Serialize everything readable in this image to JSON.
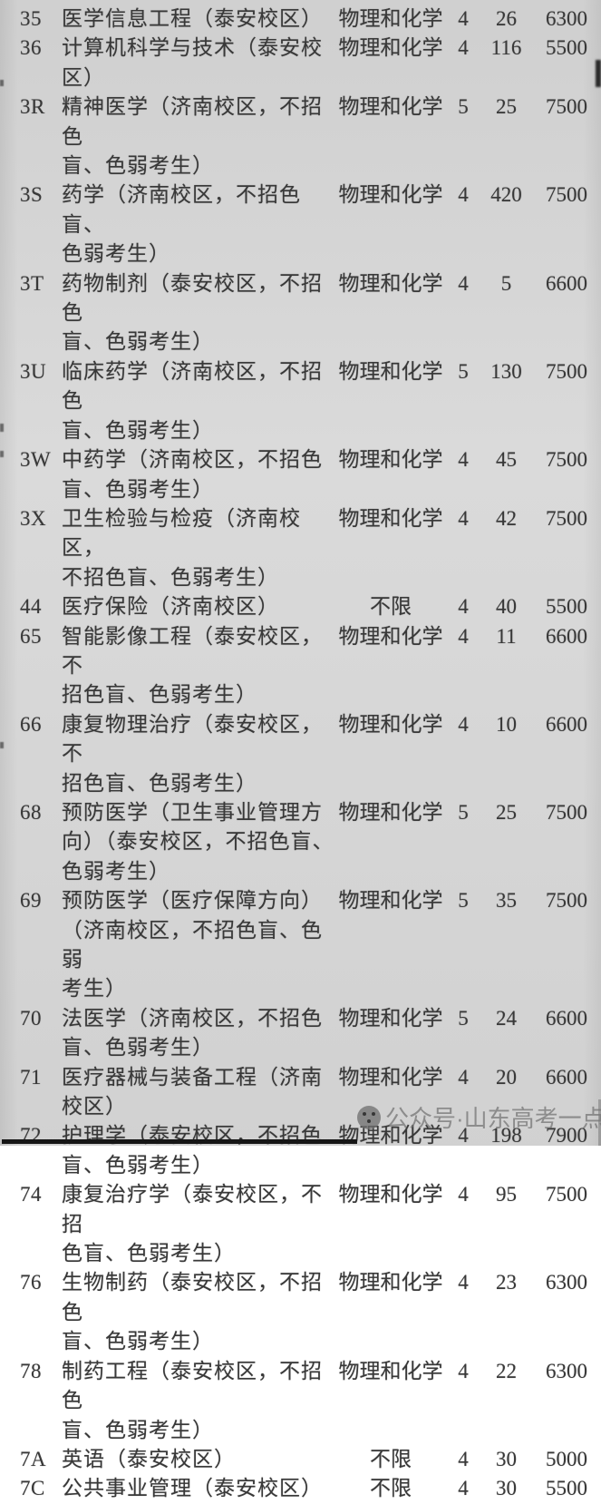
{
  "page": {
    "background_color": "#d8d8d8",
    "text_color": "#383838"
  },
  "table": {
    "rows": [
      {
        "code": "35",
        "major": "医学信息工程（泰安校区）",
        "subject": "物理和化学",
        "years": "4",
        "count": "26",
        "tuition": "6300"
      },
      {
        "code": "36",
        "major": "计算机科学与技术（泰安校区）",
        "subject": "物理和化学",
        "years": "4",
        "count": "116",
        "tuition": "5500"
      },
      {
        "code": "3R",
        "major": "精神医学（济南校区，不招色\n盲、色弱考生）",
        "subject": "物理和化学",
        "years": "5",
        "count": "25",
        "tuition": "7500"
      },
      {
        "code": "3S",
        "major": "药学（济南校区，不招色盲、\n色弱考生）",
        "subject": "物理和化学",
        "years": "4",
        "count": "420",
        "tuition": "7500"
      },
      {
        "code": "3T",
        "major": "药物制剂（泰安校区，不招色\n盲、色弱考生）",
        "subject": "物理和化学",
        "years": "4",
        "count": "5",
        "tuition": "6600"
      },
      {
        "code": "3U",
        "major": "临床药学（济南校区，不招色\n盲、色弱考生）",
        "subject": "物理和化学",
        "years": "5",
        "count": "130",
        "tuition": "7500"
      },
      {
        "code": "3W",
        "major": "中药学（济南校区，不招色\n盲、色弱考生）",
        "subject": "物理和化学",
        "years": "4",
        "count": "45",
        "tuition": "7500"
      },
      {
        "code": "3X",
        "major": "卫生检验与检疫（济南校区，\n不招色盲、色弱考生）",
        "subject": "物理和化学",
        "years": "4",
        "count": "42",
        "tuition": "7500"
      },
      {
        "code": "44",
        "major": "医疗保险（济南校区）",
        "subject": "不限",
        "years": "4",
        "count": "40",
        "tuition": "5500"
      },
      {
        "code": "65",
        "major": "智能影像工程（泰安校区，不\n招色盲、色弱考生）",
        "subject": "物理和化学",
        "years": "4",
        "count": "11",
        "tuition": "6600"
      },
      {
        "code": "66",
        "major": "康复物理治疗（泰安校区，不\n招色盲、色弱考生）",
        "subject": "物理和化学",
        "years": "4",
        "count": "10",
        "tuition": "6600"
      },
      {
        "code": "68",
        "major": "预防医学（卫生事业管理方\n向）（泰安校区，不招色盲、\n色弱考生）",
        "subject": "物理和化学",
        "years": "5",
        "count": "25",
        "tuition": "7500"
      },
      {
        "code": "69",
        "major": "预防医学（医疗保障方向）\n（济南校区，不招色盲、色弱\n考生）",
        "subject": "物理和化学",
        "years": "5",
        "count": "35",
        "tuition": "7500"
      },
      {
        "code": "70",
        "major": "法医学（济南校区，不招色\n盲、色弱考生）",
        "subject": "物理和化学",
        "years": "5",
        "count": "24",
        "tuition": "6600"
      },
      {
        "code": "71",
        "major": "医疗器械与装备工程（济南\n校区）",
        "subject": "物理和化学",
        "years": "4",
        "count": "20",
        "tuition": "6600"
      },
      {
        "code": "72",
        "major": "护理学（泰安校区，不招色\n盲、色弱考生）",
        "subject": "物理和化学",
        "years": "4",
        "count": "198",
        "tuition": "7900"
      },
      {
        "code": "74",
        "major": "康复治疗学（泰安校区，不招\n色盲、色弱考生）",
        "subject": "物理和化学",
        "years": "4",
        "count": "95",
        "tuition": "7500"
      },
      {
        "code": "76",
        "major": "生物制药（泰安校区，不招色\n盲、色弱考生）",
        "subject": "物理和化学",
        "years": "4",
        "count": "23",
        "tuition": "6300"
      },
      {
        "code": "78",
        "major": "制药工程（泰安校区，不招色\n盲、色弱考生）",
        "subject": "物理和化学",
        "years": "4",
        "count": "22",
        "tuition": "6300"
      },
      {
        "code": "7A",
        "major": "英语（泰安校区）",
        "subject": "不限",
        "years": "4",
        "count": "30",
        "tuition": "5000"
      },
      {
        "code": "7C",
        "major": "公共事业管理（泰安校区）",
        "subject": "不限",
        "years": "4",
        "count": "30",
        "tuition": "5500"
      }
    ]
  },
  "watermark": {
    "icon": "wechat-official-account-icon",
    "text": "公众号·山东高考一点通",
    "color": "#707070"
  },
  "decorations": {
    "bottom_border_color": "#161616"
  }
}
